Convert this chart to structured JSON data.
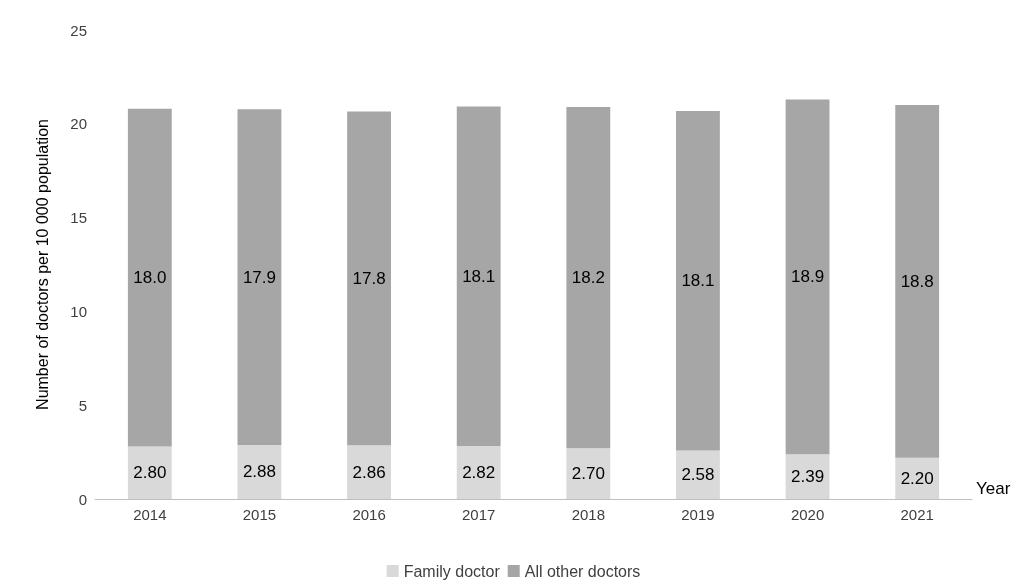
{
  "chart_data": {
    "type": "bar",
    "stacked": true,
    "xlabel": "Year",
    "ylabel": "Number of doctors per 10 000 population",
    "categories": [
      "2014",
      "2015",
      "2016",
      "2017",
      "2018",
      "2019",
      "2020",
      "2021"
    ],
    "series": [
      {
        "name": "Family doctor",
        "color": "#d9d9d9",
        "values": [
          2.8,
          2.88,
          2.86,
          2.82,
          2.7,
          2.58,
          2.39,
          2.2
        ],
        "value_labels": [
          "2.80",
          "2.88",
          "2.86",
          "2.82",
          "2.70",
          "2.58",
          "2.39",
          "2.20"
        ]
      },
      {
        "name": "All other doctors",
        "color": "#a6a6a6",
        "values": [
          18.0,
          17.9,
          17.8,
          18.1,
          18.2,
          18.1,
          18.9,
          18.8
        ],
        "value_labels": [
          "18.0",
          "17.9",
          "17.8",
          "18.1",
          "18.2",
          "18.1",
          "18.9",
          "18.8"
        ]
      }
    ],
    "ylim": [
      0,
      25
    ],
    "yticks": [
      0,
      5,
      10,
      15,
      20,
      25
    ],
    "grid": false,
    "legend": "bottom"
  }
}
